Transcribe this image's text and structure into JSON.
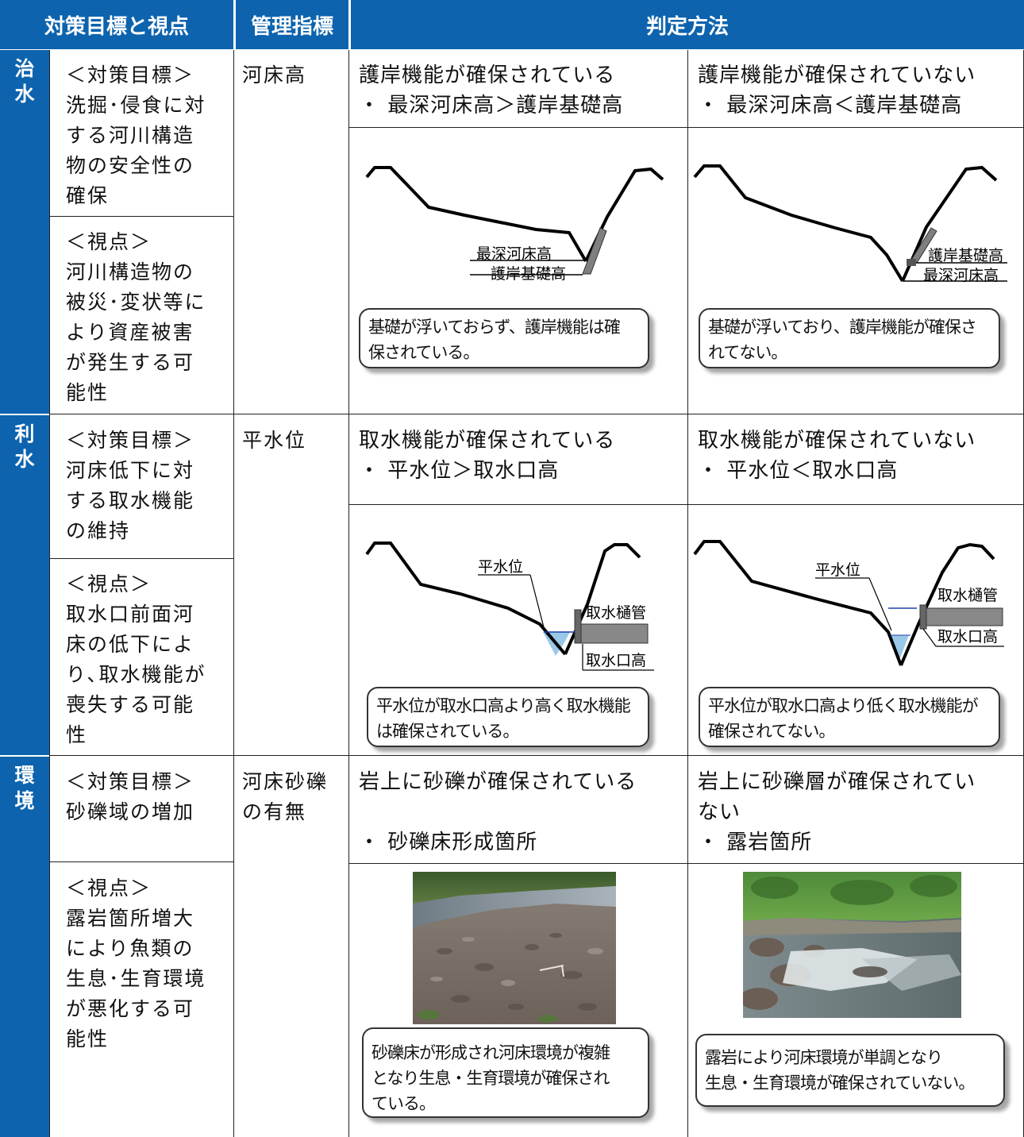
{
  "header": {
    "col1": "対策目標と視点",
    "col2": "管理指標",
    "col3": "判定方法"
  },
  "rows": [
    {
      "category": "治\n水",
      "goal": "＜対策目標＞\n洗掘･侵食に対\nする河川構造\n物の安全性の\n確保",
      "viewpoint": "＜視点＞\n河川構造物の\n被災･変状等に\nより資産被害\nが発生する可\n能性",
      "indicator": "河床高",
      "ok_head": "護岸機能が確保されている\n・ 最深河床高＞護岸基礎高",
      "ng_head": "護岸機能が確保されていない\n・ 最深河床高＜護岸基礎高",
      "ok_labels": [
        "最深河床高",
        "護岸基礎高"
      ],
      "ng_labels": [
        "護岸基礎高",
        "最深河床高"
      ],
      "ok_callout": "基礎が浮いておらず、護岸機能は確\n保されている。",
      "ng_callout": "基礎が浮いており、護岸機能が確保さ\nれてない。"
    },
    {
      "category": "利\n水",
      "goal": "＜対策目標＞\n河床低下に対\nする取水機能\nの維持",
      "viewpoint": "＜視点＞\n取水口前面河\n床の低下によ\nり､取水機能が\n喪失する可能\n性",
      "indicator": "平水位",
      "ok_head": "取水機能が確保されている\n・ 平水位＞取水口高",
      "ng_head": "取水機能が確保されていない\n・ 平水位＜取水口高",
      "ok_labels": [
        "平水位",
        "取水樋管",
        "取水口高"
      ],
      "ng_labels": [
        "平水位",
        "取水樋管",
        "取水口高"
      ],
      "ok_callout": "平水位が取水口高より高く取水機能\nは確保されている。",
      "ng_callout": "平水位が取水口高より低く取水機能が\n確保されてない。"
    },
    {
      "category": "環\n境",
      "goal": "＜対策目標＞\n砂礫域の増加",
      "viewpoint": "＜視点＞\n露岩箇所増大\nにより魚類の\n生息･生育環境\nが悪化する可\n能性",
      "indicator": "河床砂礫\nの有無",
      "ok_head": "岩上に砂礫が確保されている\n\n・ 砂礫床形成箇所",
      "ng_head": "岩上に砂礫層が確保されてい\nない\n・ 露岩箇所",
      "ok_callout": "砂礫床が形成され河床環境が複雑\nとなり生息・生育環境が確保され\nている。",
      "ng_callout": "露岩により河床環境が単調となり\n生息・生育環境が確保されていない。"
    }
  ],
  "colors": {
    "header_blue": "#0d63ad",
    "water_blue": "#9ac8e8",
    "level_line": "#1f3fa8"
  }
}
